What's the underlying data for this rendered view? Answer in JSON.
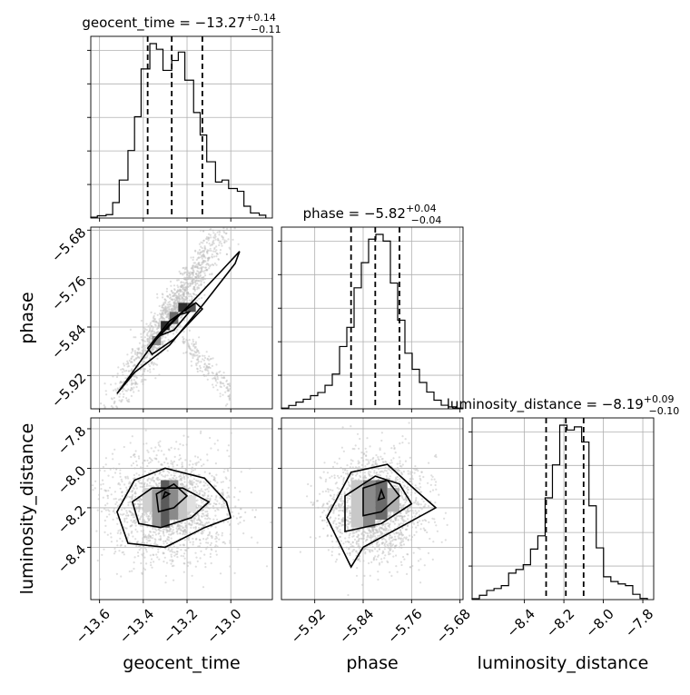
{
  "chart_data": {
    "type": "corner",
    "parameters": [
      "geocent_time",
      "phase",
      "luminosity_distance"
    ],
    "ranges": {
      "geocent_time": [
        -13.64,
        -12.81
      ],
      "phase": [
        -5.975,
        -5.675
      ],
      "luminosity_distance": [
        -8.665,
        -7.745
      ]
    },
    "ticks": {
      "geocent_time": [
        -13.6,
        -13.4,
        -13.2,
        -13.0
      ],
      "phase": [
        -5.92,
        -5.84,
        -5.76,
        -5.68
      ],
      "luminosity_distance": [
        -8.4,
        -8.2,
        -8.0,
        -7.8
      ]
    },
    "tick_labels": {
      "geocent_time": [
        "−13.6",
        "−13.4",
        "−13.2",
        "−13.0"
      ],
      "phase": [
        "−5.92",
        "−5.84",
        "−5.76",
        "−5.68"
      ],
      "luminosity_distance": [
        "−8.4",
        "−8.2",
        "−8.0",
        "−7.8"
      ]
    },
    "axis_labels": {
      "geocent_time": "geocent_time",
      "phase": "phase",
      "luminosity_distance": "luminosity_distance"
    },
    "titles": {
      "geocent_time": {
        "prefix": "geocent_time = −13.27",
        "plus": "+0.14",
        "minus": "−0.11"
      },
      "phase": {
        "prefix": "phase = −5.82",
        "plus": "+0.04",
        "minus": "−0.04"
      },
      "luminosity_distance": {
        "prefix": "luminosity_distance = −8.19",
        "plus": "+0.09",
        "minus": "−0.10"
      }
    },
    "quantiles": {
      "geocent_time": [
        -13.38,
        -13.27,
        -13.13
      ],
      "phase": [
        -5.86,
        -5.82,
        -5.78
      ],
      "luminosity_distance": [
        -8.29,
        -8.19,
        -8.1
      ]
    },
    "histograms": {
      "geocent_time": {
        "edges": [
          -13.64,
          -13.61,
          -13.57,
          -13.54,
          -13.51,
          -13.47,
          -13.44,
          -13.41,
          -13.37,
          -13.34,
          -13.31,
          -13.27,
          -13.24,
          -13.21,
          -13.17,
          -13.14,
          -13.11,
          -13.07,
          -13.04,
          -13.01,
          -12.97,
          -12.94,
          -12.91,
          -12.87,
          -12.84
        ],
        "counts": [
          3,
          8,
          12,
          55,
          135,
          240,
          360,
          530,
          620,
          600,
          525,
          560,
          590,
          490,
          375,
          295,
          200,
          128,
          135,
          105,
          95,
          42,
          18,
          10
        ]
      },
      "phase": {
        "edges": [
          -5.975,
          -5.963,
          -5.951,
          -5.939,
          -5.927,
          -5.915,
          -5.903,
          -5.891,
          -5.879,
          -5.867,
          -5.855,
          -5.843,
          -5.831,
          -5.819,
          -5.807,
          -5.795,
          -5.783,
          -5.771,
          -5.759,
          -5.747,
          -5.735,
          -5.723,
          -5.711,
          -5.699,
          -5.687,
          -5.675
        ],
        "counts": [
          3,
          14,
          28,
          40,
          55,
          68,
          98,
          145,
          260,
          340,
          505,
          610,
          708,
          728,
          700,
          525,
          370,
          232,
          165,
          110,
          70,
          36,
          15,
          8,
          3
        ]
      },
      "luminosity_distance": {
        "edges": [
          -8.665,
          -8.628,
          -8.591,
          -8.554,
          -8.517,
          -8.48,
          -8.443,
          -8.406,
          -8.369,
          -8.332,
          -8.295,
          -8.258,
          -8.221,
          -8.184,
          -8.147,
          -8.11,
          -8.073,
          -8.036,
          -7.999,
          -7.962,
          -7.925,
          -7.888,
          -7.851,
          -7.814,
          -7.777
        ],
        "counts": [
          4,
          18,
          38,
          46,
          58,
          110,
          125,
          145,
          210,
          265,
          423,
          560,
          725,
          705,
          718,
          655,
          390,
          215,
          95,
          75,
          65,
          58,
          22,
          5
        ]
      }
    },
    "density_peaks": {
      "phase_vs_geocent_time": [
        -13.29,
        -5.83
      ],
      "luminosity_distance_vs_geocent_time": [
        -13.28,
        -8.17
      ],
      "luminosity_distance_vs_phase": [
        -5.81,
        -8.15
      ]
    },
    "grid": true
  }
}
